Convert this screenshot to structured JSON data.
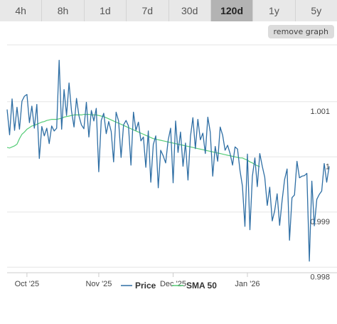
{
  "tabs": [
    {
      "label": "4h",
      "active": false
    },
    {
      "label": "8h",
      "active": false
    },
    {
      "label": "1d",
      "active": false
    },
    {
      "label": "7d",
      "active": false
    },
    {
      "label": "30d",
      "active": false
    },
    {
      "label": "120d",
      "active": true
    },
    {
      "label": "1y",
      "active": false
    },
    {
      "label": "5y",
      "active": false
    }
  ],
  "remove_graph_label": "remove graph",
  "colors": {
    "price": "#2e6ea4",
    "sma": "#55cc77",
    "grid": "#e6e6e6"
  },
  "chart_data": {
    "type": "line",
    "ylim": [
      0.9979,
      1.00203
    ],
    "y_ticks": [
      {
        "value": 1.001,
        "label": "1.001"
      },
      {
        "value": 1.0,
        "label": "1"
      },
      {
        "value": 0.999,
        "label": "0.999"
      },
      {
        "value": 0.998,
        "label": "0.998"
      }
    ],
    "x_ticks": [
      "Oct '25",
      "Nov '25",
      "Dec '25",
      "Jan '26"
    ],
    "x_tick_index": [
      8,
      37,
      67,
      97
    ],
    "series": [
      {
        "name": "Price",
        "values": [
          1.00086,
          1.0004,
          1.00105,
          1.00048,
          1.0009,
          1.0005,
          1.00101,
          1.0011,
          1.00113,
          1.00062,
          1.00092,
          1.00052,
          1.00095,
          0.99997,
          1.00055,
          1.00038,
          1.00052,
          1.00024,
          1.00056,
          1.00047,
          1.00052,
          1.00175,
          1.0005,
          1.00122,
          1.00075,
          1.00134,
          1.00083,
          1.00054,
          1.00106,
          1.00074,
          1.00058,
          1.00051,
          1.00099,
          1.00036,
          1.00084,
          1.00065,
          1.00088,
          0.99973,
          1.00066,
          1.00079,
          1.00042,
          1.00064,
          1.00046,
          0.99991,
          1.00081,
          1.00065,
          0.99999,
          1.00058,
          1.00066,
          1.00056,
          0.99985,
          1.00081,
          1.00048,
          1.00063,
          1.00029,
          1.00036,
          0.99981,
          1.00047,
          0.99954,
          1.00022,
          1.00038,
          0.99944,
          1.00012,
          1.00002,
          0.99989,
          1.0003,
          1.00052,
          0.99953,
          1.00065,
          1.00008,
          1.00045,
          0.99983,
          1.00025,
          0.99958,
          1.00037,
          1.00071,
          1.00015,
          1.00068,
          1.00031,
          1.00043,
          1.00006,
          1.00072,
          1.00045,
          0.99965,
          1.00019,
          0.99992,
          1.00054,
          1.00039,
          1.00012,
          1.00021,
          1.00006,
          0.99985,
          1.00018,
          1.00014,
          0.99975,
          0.99947,
          0.99874,
          1.00005,
          0.99868,
          0.99965,
          0.99998,
          0.99946,
          1.00006,
          0.99983,
          0.99963,
          0.99912,
          0.99945,
          0.99884,
          0.99902,
          0.99933,
          0.99876,
          0.99921,
          0.99959,
          0.99978,
          0.99849,
          0.99926,
          0.99931,
          0.99992,
          0.99962,
          0.99965,
          0.99966,
          0.9997,
          0.99811,
          0.99956,
          0.99875,
          0.99923,
          0.99932,
          0.99938,
          0.99988,
          0.99954,
          0.99983
        ]
      },
      {
        "name": "SMA 50",
        "values": [
          1.00017,
          1.00016,
          1.00018,
          1.0002,
          1.00023,
          1.00033,
          1.00041,
          1.00045,
          1.0005,
          1.00053,
          1.00056,
          1.00057,
          1.00059,
          1.00061,
          1.00063,
          1.00064,
          1.00066,
          1.00067,
          1.00068,
          1.00068,
          1.00068,
          1.00069,
          1.0007,
          1.00072,
          1.00073,
          1.00074,
          1.00075,
          1.00076,
          1.00076,
          1.00076,
          1.00076,
          1.00077,
          1.00077,
          1.00077,
          1.00076,
          1.00076,
          1.00076,
          1.00075,
          1.00074,
          1.00073,
          1.00071,
          1.00069,
          1.00067,
          1.00065,
          1.00063,
          1.00061,
          1.00059,
          1.00057,
          1.00055,
          1.00053,
          1.00051,
          1.00049,
          1.00047,
          1.00045,
          1.00043,
          1.00041,
          1.00039,
          1.00037,
          1.00035,
          1.00033,
          1.00032,
          1.00031,
          1.0003,
          1.00029,
          1.00028,
          1.00027,
          1.00026,
          1.00025,
          1.00024,
          1.00023,
          1.00022,
          1.00021,
          1.0002,
          1.00019,
          1.00018,
          1.00017,
          1.00016,
          1.00015,
          1.00014,
          1.00013,
          1.00012,
          1.00011,
          1.0001,
          1.00009,
          1.00008,
          1.00007,
          1.00006,
          1.00005,
          1.00004,
          1.00003,
          1.00002,
          1.00001,
          1.0,
          0.99999,
          0.99998,
          0.99998,
          0.99996,
          0.99994,
          0.99991,
          0.99989,
          0.99986,
          0.99984,
          0.99982
        ]
      }
    ]
  }
}
